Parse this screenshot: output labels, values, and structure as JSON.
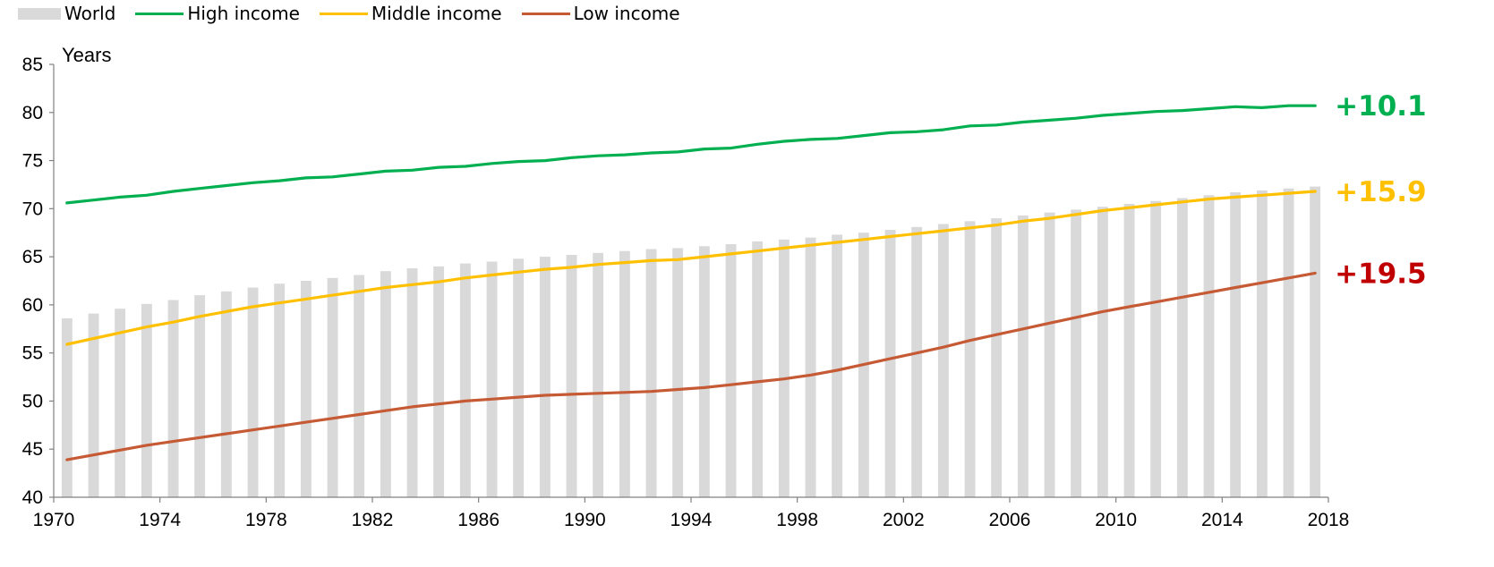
{
  "legend": {
    "world": "World",
    "high": "High income",
    "middle": "Middle income",
    "low": "Low income"
  },
  "colors": {
    "world": "#d9d9d9",
    "high": "#00b050",
    "middle": "#ffc000",
    "low": "#c55a35",
    "label_high": "#00b050",
    "label_middle": "#ffc000",
    "label_low": "#c00000"
  },
  "chart_data": {
    "type": "bar+line",
    "ylabel": "Years",
    "ylim": [
      40,
      85
    ],
    "yticks": [
      40,
      45,
      50,
      55,
      60,
      65,
      70,
      75,
      80,
      85
    ],
    "xlim": [
      1970,
      2018
    ],
    "xticks": [
      1970,
      1974,
      1978,
      1982,
      1986,
      1990,
      1994,
      1998,
      2002,
      2006,
      2010,
      2014,
      2018
    ],
    "x": [
      1970,
      1971,
      1972,
      1973,
      1974,
      1975,
      1976,
      1977,
      1978,
      1979,
      1980,
      1981,
      1982,
      1983,
      1984,
      1985,
      1986,
      1987,
      1988,
      1989,
      1990,
      1991,
      1992,
      1993,
      1994,
      1995,
      1996,
      1997,
      1998,
      1999,
      2000,
      2001,
      2002,
      2003,
      2004,
      2005,
      2006,
      2007,
      2008,
      2009,
      2010,
      2011,
      2012,
      2013,
      2014,
      2015,
      2016,
      2017
    ],
    "bar_series": {
      "name": "World",
      "values": [
        58.6,
        59.1,
        59.6,
        60.1,
        60.5,
        61.0,
        61.4,
        61.8,
        62.2,
        62.5,
        62.8,
        63.1,
        63.5,
        63.8,
        64.0,
        64.3,
        64.5,
        64.8,
        65.0,
        65.2,
        65.4,
        65.6,
        65.8,
        65.9,
        66.1,
        66.3,
        66.6,
        66.8,
        67.0,
        67.3,
        67.5,
        67.8,
        68.1,
        68.4,
        68.7,
        69.0,
        69.3,
        69.6,
        69.9,
        70.2,
        70.5,
        70.8,
        71.1,
        71.4,
        71.7,
        71.9,
        72.1,
        72.3
      ]
    },
    "line_series": [
      {
        "name": "High income",
        "values": [
          70.6,
          70.9,
          71.2,
          71.4,
          71.8,
          72.1,
          72.4,
          72.7,
          72.9,
          73.2,
          73.3,
          73.6,
          73.9,
          74.0,
          74.3,
          74.4,
          74.7,
          74.9,
          75.0,
          75.3,
          75.5,
          75.6,
          75.8,
          75.9,
          76.2,
          76.3,
          76.7,
          77.0,
          77.2,
          77.3,
          77.6,
          77.9,
          78.0,
          78.2,
          78.6,
          78.7,
          79.0,
          79.2,
          79.4,
          79.7,
          79.9,
          80.1,
          80.2,
          80.4,
          80.6,
          80.5,
          80.7,
          80.7
        ]
      },
      {
        "name": "Middle income",
        "values": [
          55.9,
          56.5,
          57.1,
          57.7,
          58.2,
          58.8,
          59.3,
          59.8,
          60.2,
          60.6,
          61.0,
          61.4,
          61.8,
          62.1,
          62.4,
          62.8,
          63.1,
          63.4,
          63.7,
          63.9,
          64.2,
          64.4,
          64.6,
          64.7,
          65.0,
          65.3,
          65.6,
          65.9,
          66.2,
          66.5,
          66.8,
          67.1,
          67.4,
          67.7,
          68.0,
          68.3,
          68.7,
          69.0,
          69.4,
          69.8,
          70.1,
          70.4,
          70.7,
          71.0,
          71.2,
          71.4,
          71.6,
          71.8
        ]
      },
      {
        "name": "Low income",
        "values": [
          43.9,
          44.4,
          44.9,
          45.4,
          45.8,
          46.2,
          46.6,
          47.0,
          47.4,
          47.8,
          48.2,
          48.6,
          49.0,
          49.4,
          49.7,
          50.0,
          50.2,
          50.4,
          50.6,
          50.7,
          50.8,
          50.9,
          51.0,
          51.2,
          51.4,
          51.7,
          52.0,
          52.3,
          52.7,
          53.2,
          53.8,
          54.4,
          55.0,
          55.6,
          56.3,
          56.9,
          57.5,
          58.1,
          58.7,
          59.3,
          59.8,
          60.3,
          60.8,
          61.3,
          61.8,
          62.3,
          62.8,
          63.3
        ]
      }
    ],
    "end_labels": [
      "+10.1",
      "+15.9",
      "+19.5"
    ],
    "legend_position": "top-left"
  }
}
